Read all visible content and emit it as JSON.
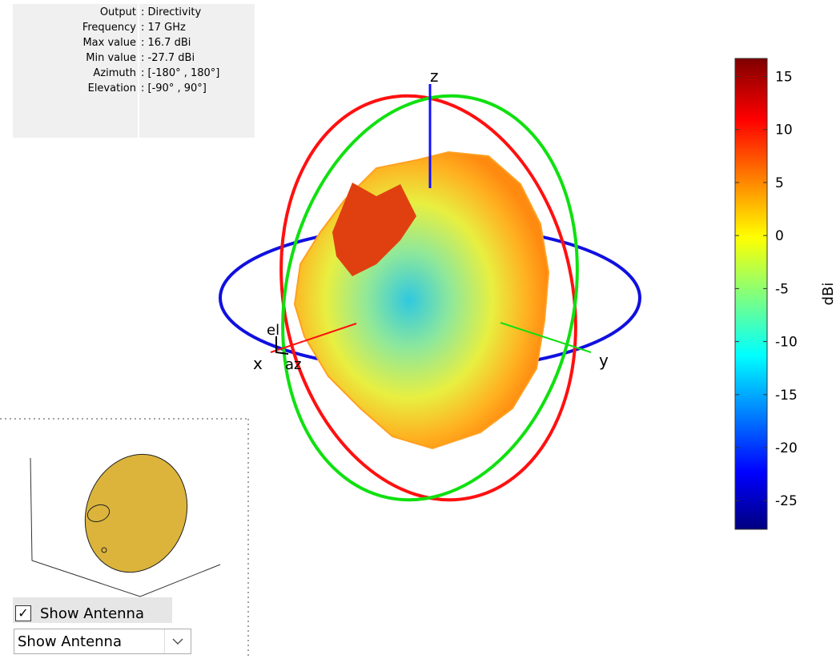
{
  "info_panel": {
    "rows": [
      {
        "label": "Output",
        "value": ": Directivity"
      },
      {
        "label": "Frequency",
        "value": ": 17 GHz"
      },
      {
        "label": "Max value",
        "value": ": 16.7 dBi"
      },
      {
        "label": "Min value",
        "value": ": -27.7 dBi"
      },
      {
        "label": "Azimuth",
        "value": ": [-180° , 180°]"
      },
      {
        "label": "Elevation",
        "value": ": [-90° , 90°]"
      }
    ]
  },
  "axes_labels": {
    "x": "x",
    "y": "y",
    "z": "z",
    "az": "az",
    "el": "el"
  },
  "colorbar": {
    "label": "dBi",
    "lim": [
      -27.7,
      16.7
    ],
    "ticks": [
      15,
      10,
      5,
      0,
      -5,
      -10,
      -15,
      -20,
      -25
    ]
  },
  "controls": {
    "checkbox": "Show Antenna",
    "dropdown": "Show Antenna"
  }
}
